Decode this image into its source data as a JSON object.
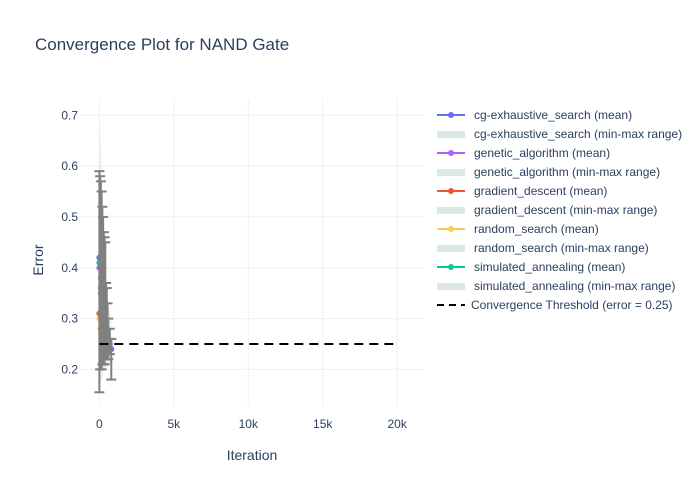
{
  "chart_data": {
    "type": "line",
    "title": "Convergence Plot for NAND Gate",
    "xlabel": "Iteration",
    "ylabel": "Error",
    "xlim": [
      -1300,
      21800
    ],
    "ylim": [
      0.13,
      0.73
    ],
    "x_ticks": [
      0,
      5000,
      10000,
      15000,
      20000
    ],
    "x_tick_labels": [
      "0",
      "5k",
      "10k",
      "15k",
      "20k"
    ],
    "y_ticks": [
      0.2,
      0.3,
      0.4,
      0.5,
      0.6,
      0.7
    ],
    "y_tick_labels": [
      "0.2",
      "0.3",
      "0.4",
      "0.5",
      "0.6",
      "0.7"
    ],
    "grid": true,
    "legend_position": "right",
    "colors": {
      "cg_exhaustive_search": "#636efa",
      "genetic_algorithm": "#ab63fa",
      "gradient_descent": "#ef553b",
      "random_search": "#fecb52",
      "simulated_annealing": "#00cc96",
      "range_fill": "#dce8e3",
      "error_bars": "#808080",
      "threshold": "#000000"
    },
    "series": [
      {
        "name": "cg-exhaustive_search (mean)",
        "kind": "mean",
        "color": "#636efa",
        "x": [
          0,
          100,
          200,
          300,
          400,
          500,
          600,
          700,
          800
        ],
        "y": [
          0.42,
          0.36,
          0.33,
          0.3,
          0.28,
          0.27,
          0.26,
          0.25,
          0.24
        ]
      },
      {
        "name": "cg-exhaustive_search (min-max range)",
        "kind": "range",
        "color": "#dce8e3",
        "x": [
          0,
          200,
          400,
          600,
          800
        ],
        "min": [
          0.2,
          0.2,
          0.2,
          0.21,
          0.21
        ],
        "max": [
          0.6,
          0.48,
          0.4,
          0.33,
          0.3
        ]
      },
      {
        "name": "genetic_algorithm (mean)",
        "kind": "mean",
        "color": "#ab63fa",
        "x": [
          0,
          100,
          200,
          300,
          400,
          500
        ],
        "y": [
          0.4,
          0.35,
          0.32,
          0.3,
          0.28,
          0.27
        ]
      },
      {
        "name": "genetic_algorithm (min-max range)",
        "kind": "range",
        "color": "#dce8e3",
        "x": [
          0,
          200,
          400
        ],
        "min": [
          0.2,
          0.21,
          0.21
        ],
        "max": [
          0.62,
          0.5,
          0.42
        ]
      },
      {
        "name": "gradient_descent (mean)",
        "kind": "mean",
        "color": "#ef553b",
        "x": [
          0,
          100,
          200,
          300
        ],
        "y": [
          0.31,
          0.28,
          0.26,
          0.25
        ]
      },
      {
        "name": "gradient_descent (min-max range)",
        "kind": "range",
        "color": "#dce8e3",
        "x": [
          0,
          150,
          300
        ],
        "min": [
          0.16,
          0.18,
          0.2
        ],
        "max": [
          0.55,
          0.45,
          0.35
        ]
      },
      {
        "name": "random_search (mean)",
        "kind": "mean",
        "color": "#fecb52",
        "x": [
          0,
          100,
          200,
          300,
          400
        ],
        "y": [
          0.3,
          0.27,
          0.25,
          0.24,
          0.24
        ]
      },
      {
        "name": "random_search (min-max range)",
        "kind": "range",
        "color": "#dce8e3",
        "x": [
          0,
          200,
          400
        ],
        "min": [
          0.18,
          0.2,
          0.2
        ],
        "max": [
          0.58,
          0.45,
          0.36
        ]
      },
      {
        "name": "simulated_annealing (mean)",
        "kind": "mean",
        "color": "#00cc96",
        "x": [
          0,
          100,
          200,
          300,
          400,
          500
        ],
        "y": [
          0.41,
          0.38,
          0.34,
          0.31,
          0.29,
          0.27
        ]
      },
      {
        "name": "simulated_annealing (min-max range)",
        "kind": "range",
        "color": "#dce8e3",
        "x": [
          0,
          200,
          400
        ],
        "min": [
          0.22,
          0.22,
          0.22
        ],
        "max": [
          0.7,
          0.55,
          0.45
        ]
      },
      {
        "name": "Convergence Threshold (error = 0.25)",
        "kind": "threshold",
        "color": "#000000",
        "x": [
          0,
          20000
        ],
        "y": [
          0.25,
          0.25
        ]
      }
    ],
    "error_bars": {
      "color": "#808080",
      "x": [
        0,
        50,
        100,
        150,
        200,
        250,
        300,
        350,
        400,
        450,
        500,
        550,
        600,
        700,
        800
      ],
      "low": [
        0.155,
        0.2,
        0.2,
        0.2,
        0.21,
        0.21,
        0.21,
        0.21,
        0.22,
        0.22,
        0.22,
        0.22,
        0.22,
        0.23,
        0.18
      ],
      "high": [
        0.59,
        0.58,
        0.57,
        0.55,
        0.52,
        0.5,
        0.47,
        0.46,
        0.45,
        0.37,
        0.36,
        0.33,
        0.3,
        0.28,
        0.26
      ]
    }
  }
}
